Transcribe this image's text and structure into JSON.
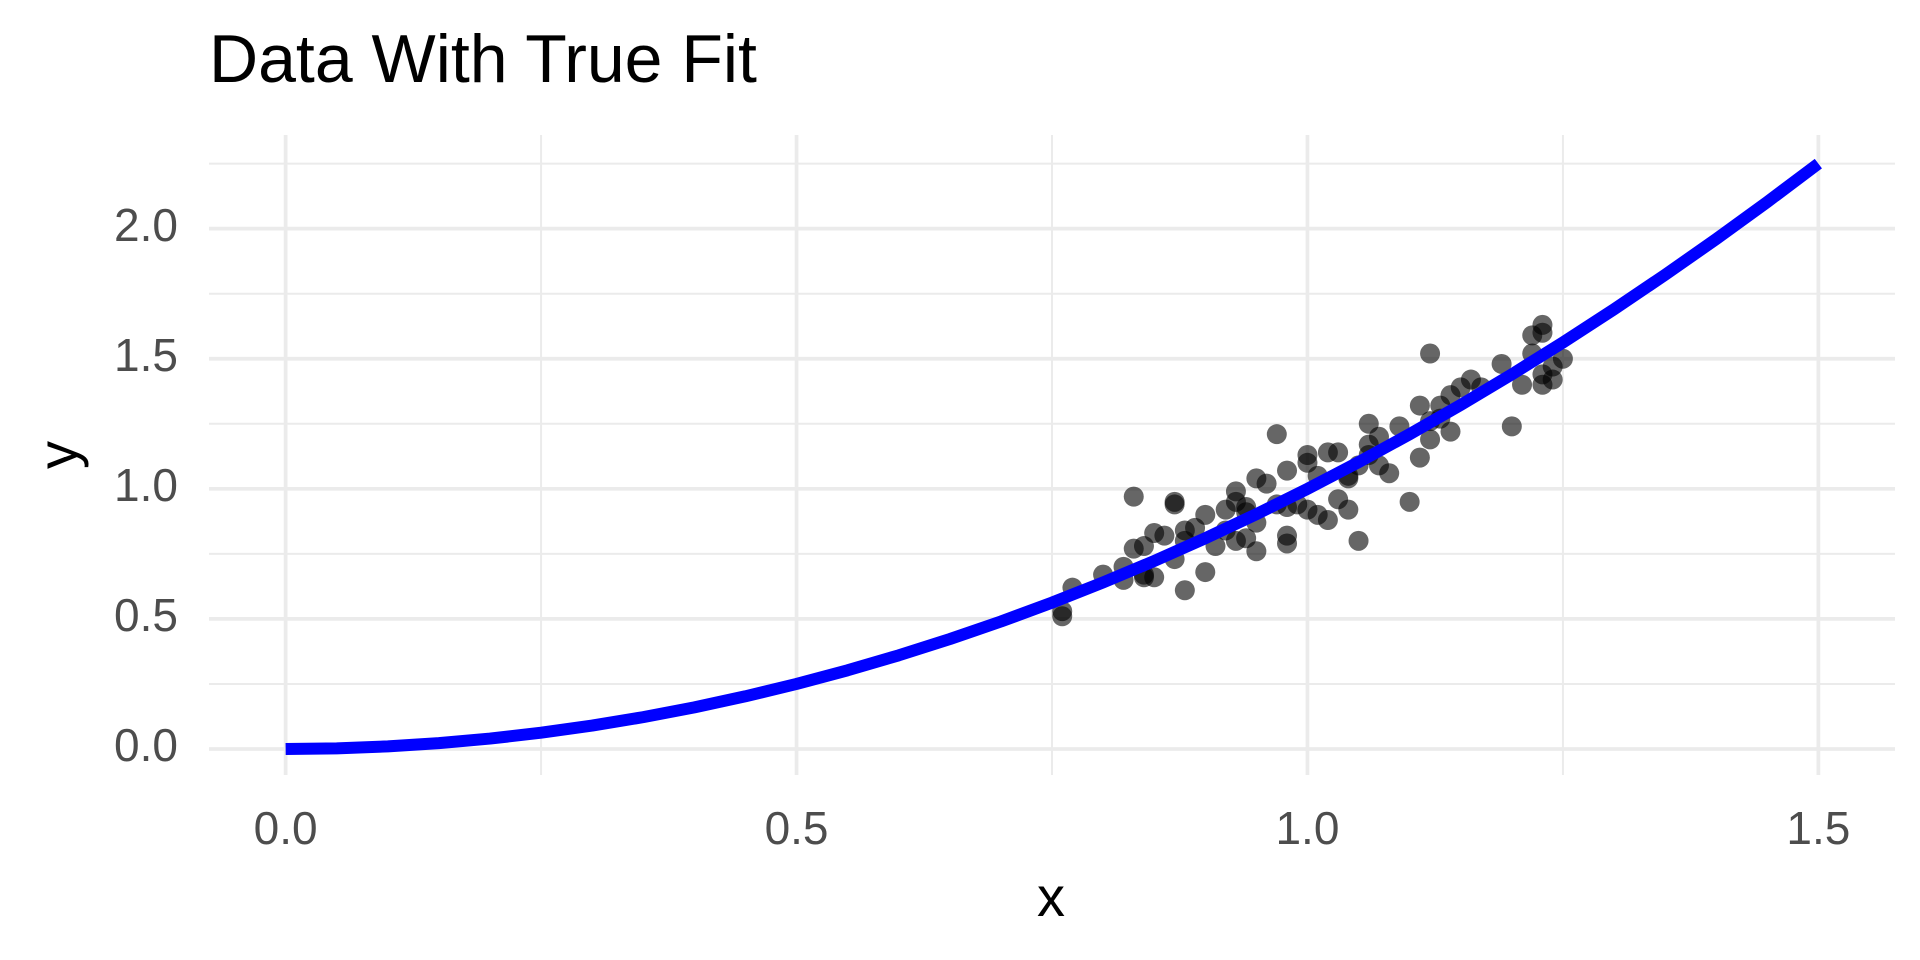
{
  "chart_data": {
    "type": "scatter",
    "title": "Data With True Fit",
    "x_label": "x",
    "y_label": "y",
    "xlim": [
      -0.075,
      1.575
    ],
    "ylim": [
      -0.1,
      2.36
    ],
    "xticks": [
      {
        "value": 0,
        "label": "0.0"
      },
      0.5,
      {
        "value": 1,
        "label": "1.0"
      },
      1.5
    ],
    "yticks": [
      {
        "value": 0,
        "label": "0.0"
      },
      0.5,
      {
        "value": 1,
        "label": "1.0"
      },
      1.5,
      {
        "value": 2,
        "label": "2.0"
      }
    ],
    "minor_xticks": [
      0.25,
      0.75,
      1.25
    ],
    "minor_yticks": [
      0.25,
      0.75,
      1.25,
      1.75,
      2.25
    ],
    "grid": true,
    "series": [
      {
        "type": "scatter",
        "color": "#000000",
        "opacity": 0.6,
        "x": [
          0.76,
          0.76,
          0.77,
          0.8,
          0.82,
          0.82,
          0.83,
          0.84,
          0.83,
          0.84,
          0.85,
          0.85,
          0.84,
          0.86,
          0.87,
          0.87,
          0.87,
          0.88,
          0.88,
          0.88,
          0.89,
          0.9,
          0.9,
          0.91,
          0.92,
          0.92,
          0.93,
          0.93,
          0.93,
          0.94,
          0.94,
          0.94,
          0.95,
          0.95,
          0.95,
          0.96,
          0.97,
          0.97,
          0.98,
          0.98,
          0.98,
          0.98,
          0.99,
          1.0,
          1.0,
          1.0,
          1.01,
          1.01,
          1.02,
          1.02,
          1.03,
          1.03,
          1.04,
          1.04,
          1.04,
          1.05,
          1.05,
          1.06,
          1.06,
          1.06,
          1.07,
          1.07,
          1.08,
          1.09,
          1.1,
          1.11,
          1.11,
          1.12,
          1.12,
          1.12,
          1.13,
          1.13,
          1.14,
          1.14,
          1.15,
          1.16,
          1.17,
          1.19,
          1.2,
          1.21,
          1.22,
          1.22,
          1.23,
          1.23,
          1.23,
          1.23,
          1.24,
          1.24,
          1.25
        ],
        "values": [
          0.51,
          0.53,
          0.62,
          0.67,
          0.65,
          0.7,
          0.77,
          0.67,
          0.97,
          0.78,
          0.83,
          0.66,
          0.66,
          0.82,
          0.95,
          0.94,
          0.73,
          0.8,
          0.61,
          0.84,
          0.85,
          0.68,
          0.9,
          0.78,
          0.92,
          0.84,
          0.8,
          0.99,
          0.95,
          0.91,
          0.81,
          0.93,
          1.04,
          0.76,
          0.87,
          1.02,
          1.21,
          0.94,
          0.82,
          0.79,
          1.07,
          0.93,
          0.94,
          1.1,
          0.92,
          1.13,
          0.9,
          1.05,
          0.88,
          1.14,
          1.14,
          0.96,
          1.05,
          0.92,
          1.04,
          0.8,
          1.09,
          1.25,
          1.17,
          1.13,
          1.09,
          1.2,
          1.06,
          1.24,
          0.95,
          1.32,
          1.12,
          1.19,
          1.26,
          1.52,
          1.32,
          1.27,
          1.22,
          1.36,
          1.39,
          1.42,
          1.39,
          1.48,
          1.24,
          1.4,
          1.52,
          1.59,
          1.4,
          1.44,
          1.63,
          1.6,
          1.47,
          1.42,
          1.5
        ]
      },
      {
        "type": "line",
        "color": "#0000ff",
        "x": [
          0,
          0.05,
          0.1,
          0.15,
          0.2,
          0.25,
          0.3,
          0.35,
          0.4,
          0.45,
          0.5,
          0.55,
          0.6,
          0.65,
          0.7,
          0.75,
          0.8,
          0.85,
          0.9,
          0.95,
          1,
          1.05,
          1.1,
          1.15,
          1.2,
          1.25,
          1.3,
          1.35,
          1.4,
          1.45,
          1.5
        ],
        "values": [
          0,
          0.0025,
          0.01,
          0.0225,
          0.04,
          0.0625,
          0.09,
          0.1225,
          0.16,
          0.2025,
          0.25,
          0.3025,
          0.36,
          0.4225,
          0.49,
          0.5625,
          0.64,
          0.7225,
          0.81,
          0.9025,
          1,
          1.1025,
          1.21,
          1.3225,
          1.44,
          1.5625,
          1.69,
          1.8225,
          1.96,
          2.1025,
          2.25
        ]
      }
    ]
  }
}
